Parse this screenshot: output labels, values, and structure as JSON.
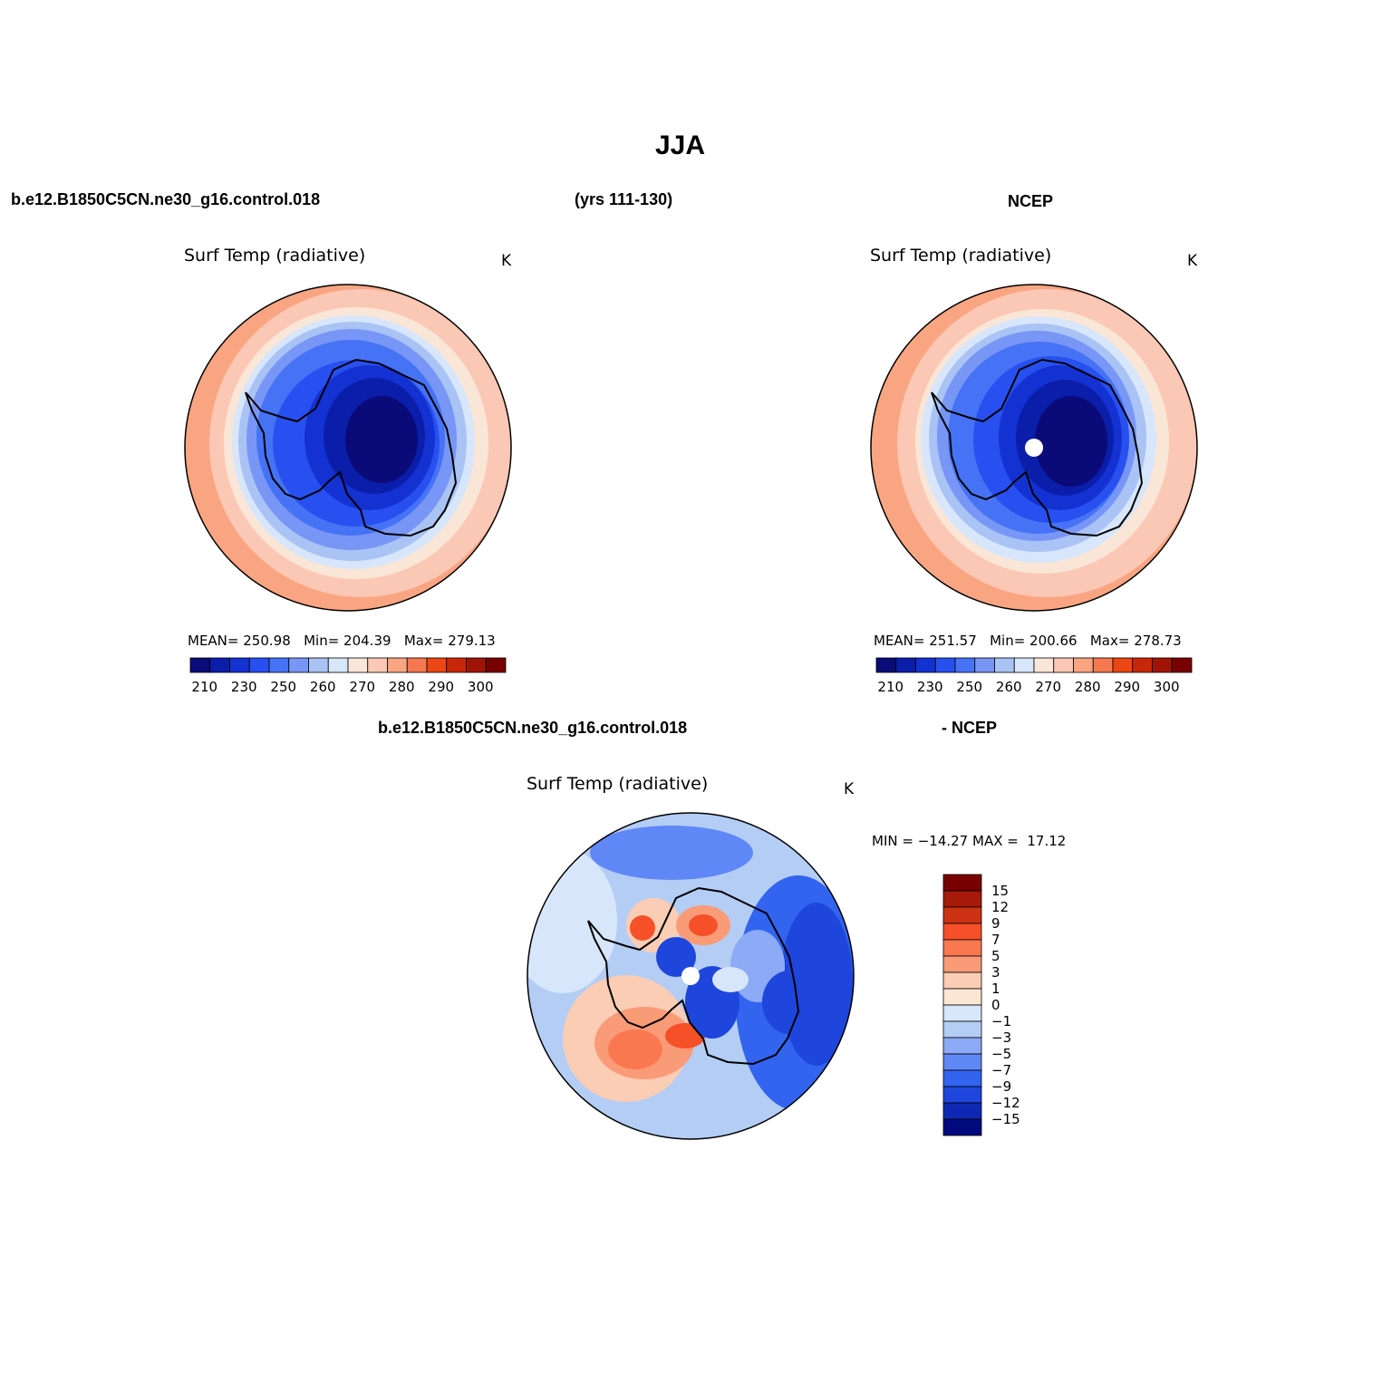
{
  "page": {
    "title": "JJA",
    "case_label": "b.e12.B1850C5CN.ne30_g16.control.018",
    "years": "(yrs 111-130)",
    "obs_label": "NCEP",
    "diff_case_label": "b.e12.B1850C5CN.ne30_g16.control.018",
    "diff_obs_label": "- NCEP"
  },
  "panels": {
    "model": {
      "title": "Surf Temp (radiative)",
      "units": "K",
      "mean_label": "MEAN=",
      "mean": "250.98",
      "min_label": "Min=",
      "min": "204.39",
      "max_label": "Max=",
      "max": "279.13"
    },
    "obs": {
      "title": "Surf Temp (radiative)",
      "units": "K",
      "mean_label": "MEAN=",
      "mean": "251.57",
      "min_label": "Min=",
      "min": "200.66",
      "max_label": "Max=",
      "max": "278.73"
    },
    "diff": {
      "title": "Surf Temp (radiative)",
      "units": "K",
      "min_label": "MIN =",
      "min": "−14.27",
      "max_label": "MAX =",
      "max": "17.12"
    }
  },
  "colorbars": {
    "absolute": {
      "colors": [
        "#0a0a78",
        "#0a1eaa",
        "#1432d2",
        "#2850f0",
        "#4673f5",
        "#7896f5",
        "#aac3f5",
        "#d7e6fa",
        "#fae6d7",
        "#fac8b4",
        "#faa582",
        "#f57850",
        "#eb4614",
        "#c82808",
        "#a01406",
        "#780000"
      ],
      "tick_labels": [
        "210",
        "230",
        "250",
        "260",
        "270",
        "280",
        "290",
        "300"
      ]
    },
    "difference": {
      "colors": [
        "#780000",
        "#a51a08",
        "#cd3214",
        "#f55028",
        "#fa7850",
        "#fa9b78",
        "#facdb4",
        "#fae6d2",
        "#d7e6fa",
        "#b4cdf5",
        "#8caaf5",
        "#5f87f5",
        "#3264f0",
        "#1e46dc",
        "#0f28b4",
        "#000a7d"
      ],
      "tick_labels": [
        "15",
        "12",
        "9",
        "7",
        "5",
        "3",
        "1",
        "0",
        "−1",
        "−3",
        "−5",
        "−7",
        "−9",
        "−12",
        "−15"
      ]
    }
  }
}
